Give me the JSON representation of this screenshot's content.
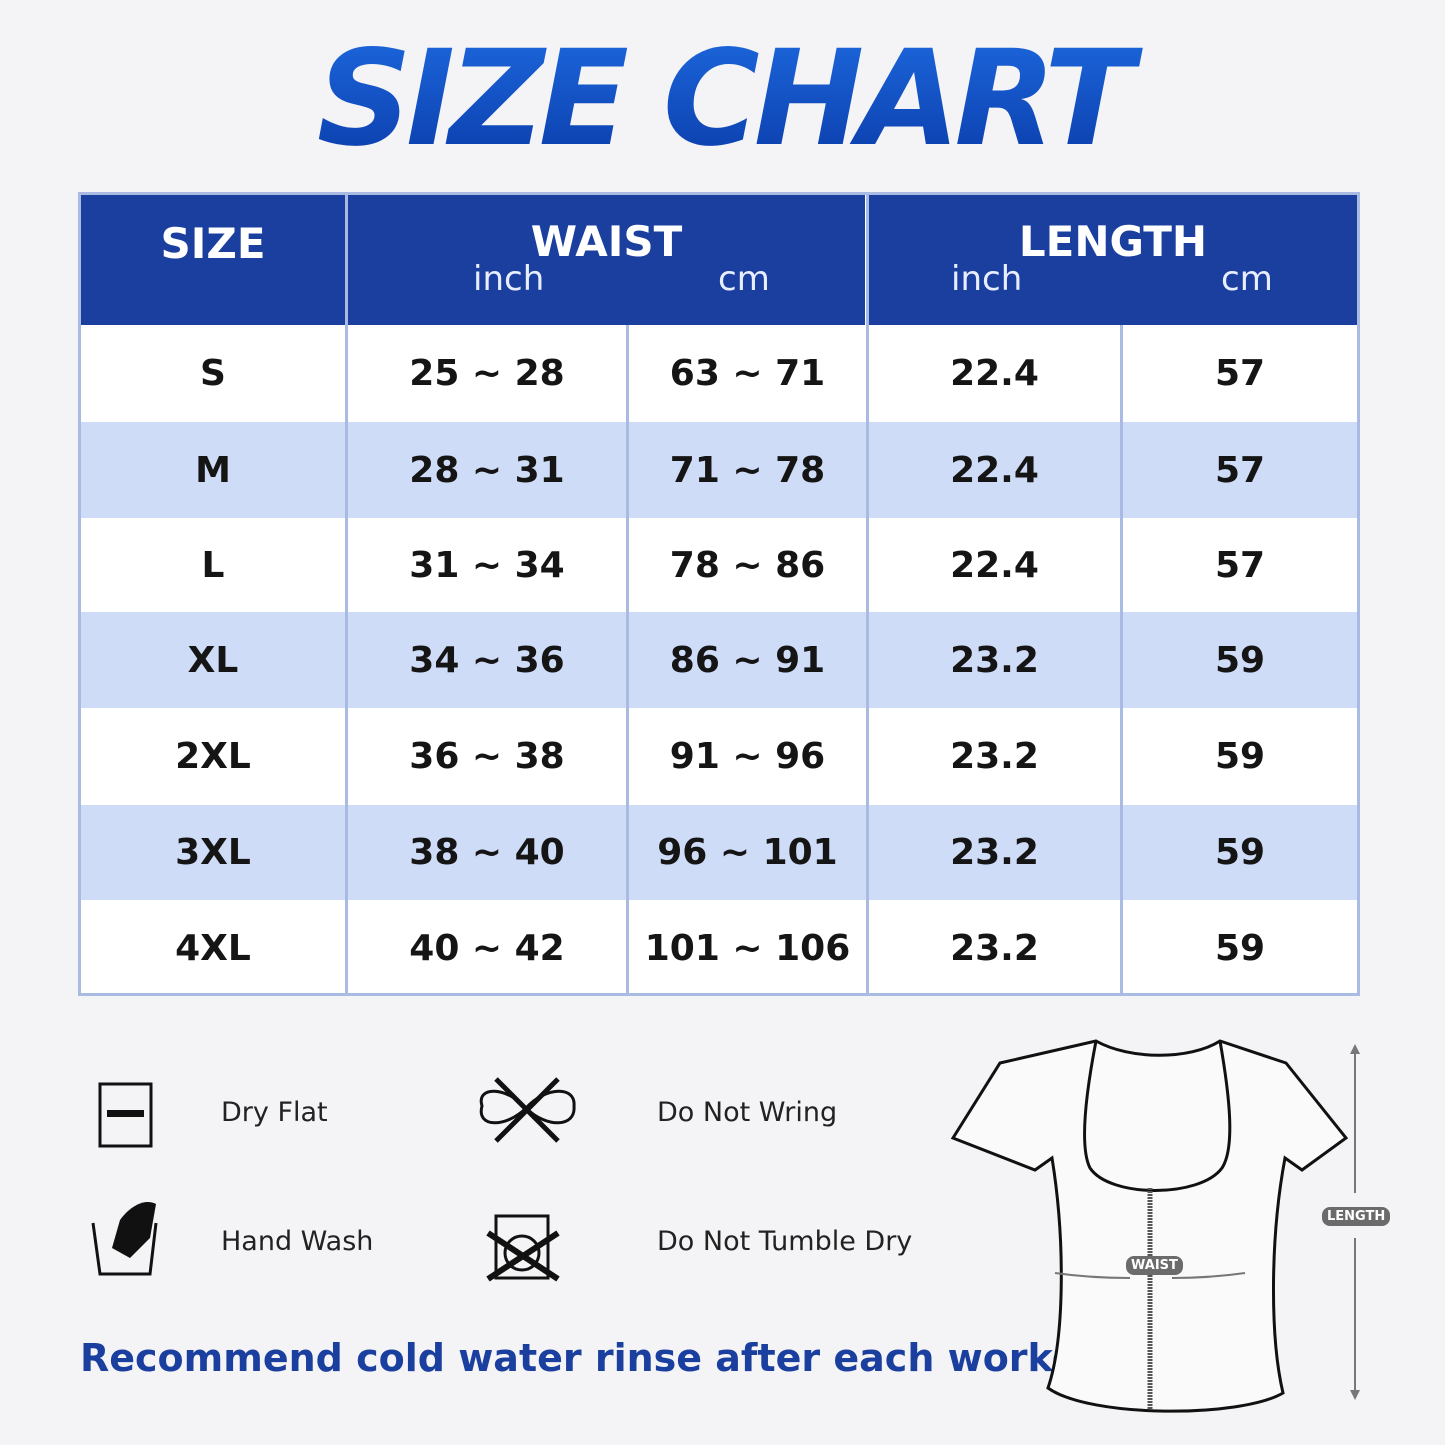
{
  "title": "SIZE CHART",
  "table": {
    "headers": {
      "size": "SIZE",
      "waist": "WAIST",
      "length": "LENGTH",
      "inch": "inch",
      "cm": "cm"
    },
    "rows": [
      {
        "size": "S",
        "waist_in": "25 ~ 28",
        "waist_cm": "63 ~ 71",
        "length_in": "22.4",
        "length_cm": "57"
      },
      {
        "size": "M",
        "waist_in": "28 ~ 31",
        "waist_cm": "71 ~ 78",
        "length_in": "22.4",
        "length_cm": "57"
      },
      {
        "size": "L",
        "waist_in": "31 ~ 34",
        "waist_cm": "78 ~ 86",
        "length_in": "22.4",
        "length_cm": "57"
      },
      {
        "size": "XL",
        "waist_in": "34 ~ 36",
        "waist_cm": "86 ~ 91",
        "length_in": "23.2",
        "length_cm": "59"
      },
      {
        "size": "2XL",
        "waist_in": "36 ~ 38",
        "waist_cm": "91 ~ 96",
        "length_in": "23.2",
        "length_cm": "59"
      },
      {
        "size": "3XL",
        "waist_in": "38 ~ 40",
        "waist_cm": "96 ~ 101",
        "length_in": "23.2",
        "length_cm": "59"
      },
      {
        "size": "4XL",
        "waist_in": "40 ~ 42",
        "waist_cm": "101 ~ 106",
        "length_in": "23.2",
        "length_cm": "59"
      }
    ]
  },
  "care": [
    {
      "label": "Dry Flat",
      "icon": "dry-flat-icon"
    },
    {
      "label": "Do Not Wring",
      "icon": "do-not-wring-icon"
    },
    {
      "label": "Hand Wash",
      "icon": "hand-wash-icon"
    },
    {
      "label": "Do Not Tumble Dry",
      "icon": "do-not-tumble-dry-icon"
    }
  ],
  "note": "Recommend cold water rinse after each workout.",
  "diagram": {
    "waist_label": "WAIST",
    "length_label": "LENGTH"
  },
  "colors": {
    "header": "#1a3f9e",
    "stripe": "#cfdcf7",
    "title": "#1450c8"
  }
}
